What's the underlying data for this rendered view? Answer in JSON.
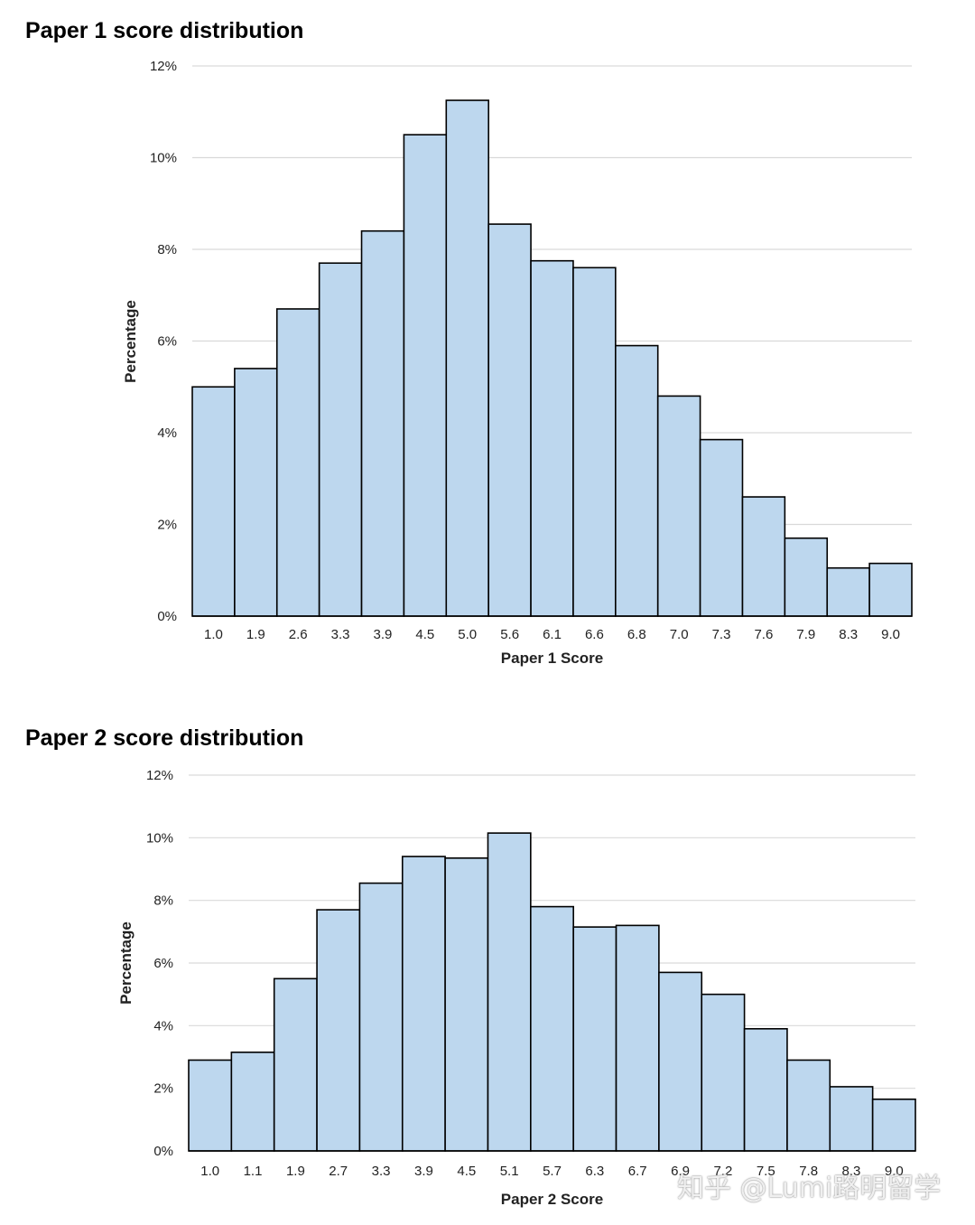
{
  "chart_data": [
    {
      "type": "bar",
      "title": "Paper 1 score distribution",
      "xlabel": "Paper 1 Score",
      "ylabel": "Percentage",
      "ylim": [
        0,
        12
      ],
      "yticks": [
        "0%",
        "2%",
        "4%",
        "6%",
        "8%",
        "10%",
        "12%"
      ],
      "categories": [
        "1.0",
        "1.9",
        "2.6",
        "3.3",
        "3.9",
        "4.5",
        "5.0",
        "5.6",
        "6.1",
        "6.6",
        "6.8",
        "7.0",
        "7.3",
        "7.6",
        "7.9",
        "8.3",
        "9.0"
      ],
      "values": [
        5.0,
        5.4,
        6.7,
        7.7,
        8.4,
        10.5,
        11.25,
        8.55,
        7.75,
        7.6,
        5.9,
        4.8,
        3.85,
        2.6,
        1.7,
        1.05,
        1.15
      ],
      "bar_color": "#bdd7ee",
      "edge_color": "#000000",
      "grid": true
    },
    {
      "type": "bar",
      "title": "Paper 2 score distribution",
      "xlabel": "Paper 2 Score",
      "ylabel": "Percentage",
      "ylim": [
        0,
        12
      ],
      "yticks": [
        "0%",
        "2%",
        "4%",
        "6%",
        "8%",
        "10%",
        "12%"
      ],
      "categories": [
        "1.0",
        "1.1",
        "1.9",
        "2.7",
        "3.3",
        "3.9",
        "4.5",
        "5.1",
        "5.7",
        "6.3",
        "6.7",
        "6.9",
        "7.2",
        "7.5",
        "7.8",
        "8.3",
        "9.0"
      ],
      "values": [
        2.9,
        3.15,
        5.5,
        7.7,
        8.55,
        9.4,
        9.35,
        10.15,
        7.8,
        7.15,
        7.2,
        5.7,
        5.0,
        3.9,
        2.9,
        2.05,
        1.65
      ],
      "bar_color": "#bdd7ee",
      "edge_color": "#000000",
      "grid": true
    }
  ],
  "watermark": "知乎 @Lumi路明留学"
}
